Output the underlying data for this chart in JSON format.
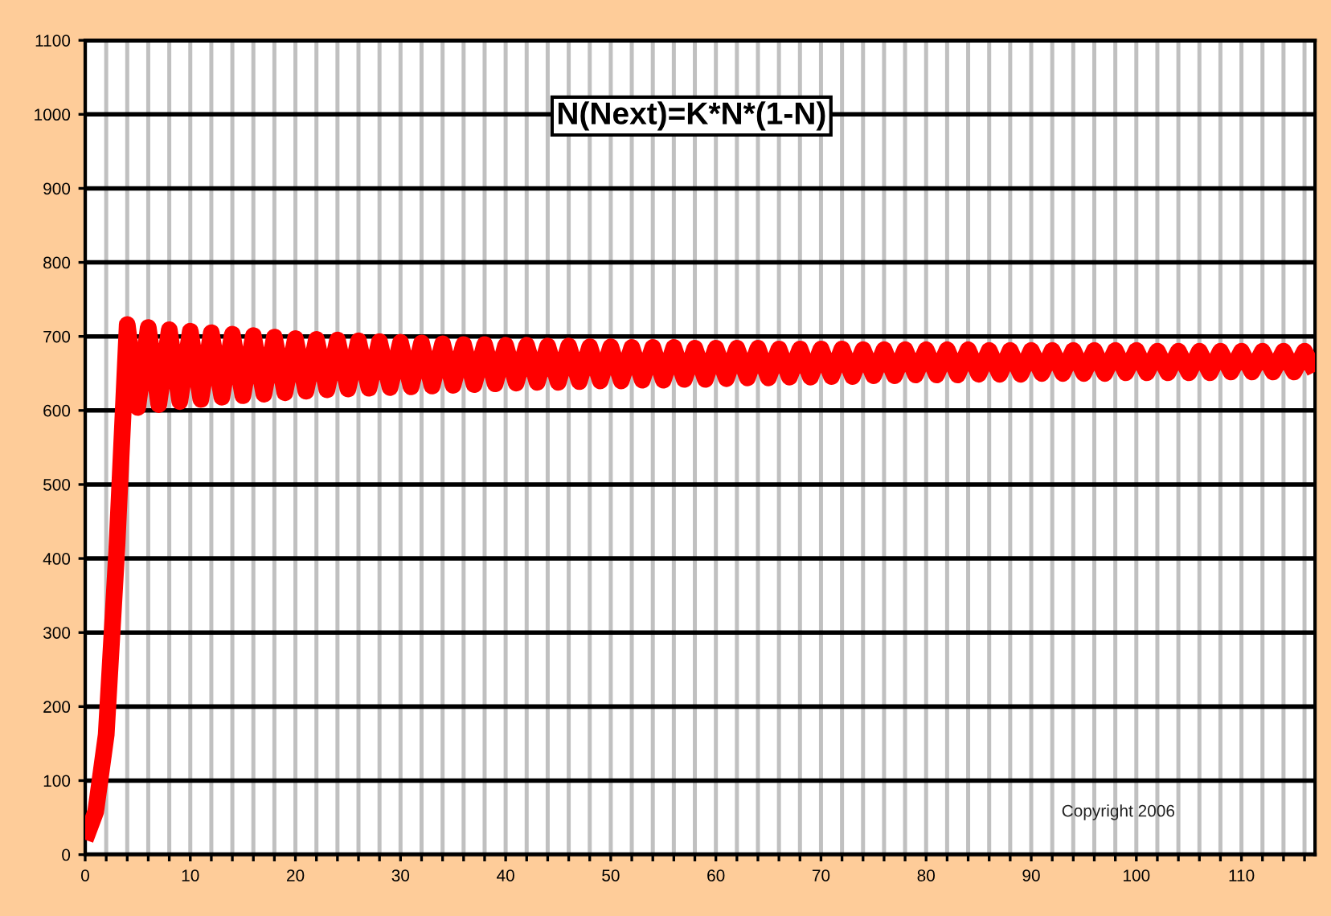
{
  "chart_data": {
    "type": "line",
    "title": "N(Next)=K*N*(1-N)",
    "annotations": [
      "Copyright 2006"
    ],
    "x": [
      0,
      1,
      2,
      3,
      4,
      5,
      6,
      7,
      8,
      9,
      10,
      11,
      12,
      13,
      14,
      15,
      16,
      17,
      18,
      19,
      20,
      21,
      22,
      23,
      24,
      25,
      26,
      27,
      28,
      29,
      30,
      31,
      32,
      33,
      34,
      35,
      36,
      37,
      38,
      39,
      40,
      41,
      42,
      43,
      44,
      45,
      46,
      47,
      48,
      49,
      50,
      51,
      52,
      53,
      54,
      55,
      56,
      57,
      58,
      59,
      60,
      61,
      62,
      63,
      64,
      65,
      66,
      67,
      68,
      69,
      70,
      71,
      72,
      73,
      74,
      75,
      76,
      77,
      78,
      79,
      80,
      81,
      82,
      83,
      84,
      85,
      86,
      87,
      88,
      89,
      90,
      91,
      92,
      93,
      94,
      95,
      96,
      97,
      98,
      99,
      100,
      101,
      102,
      103,
      104,
      105,
      106,
      107,
      108,
      109,
      110,
      111,
      112,
      113,
      114,
      115,
      116,
      117
    ],
    "series": [
      {
        "color": "#ff0000",
        "values": [
          20,
          58,
          162,
          410,
          716,
          604,
          712,
          608,
          709,
          612,
          707,
          615,
          705,
          618,
          703,
          620,
          701,
          622,
          699,
          624,
          697,
          626,
          696,
          628,
          695,
          629,
          694,
          630,
          693,
          631,
          692,
          632,
          691,
          633,
          690,
          634,
          689,
          635,
          689,
          636,
          688,
          637,
          688,
          638,
          687,
          638,
          687,
          639,
          686,
          640,
          686,
          640,
          685,
          641,
          685,
          641,
          685,
          642,
          684,
          642,
          684,
          643,
          684,
          644,
          684,
          644,
          683,
          645,
          683,
          645,
          683,
          646,
          683,
          646,
          682,
          647,
          682,
          647,
          682,
          648,
          682,
          648,
          682,
          648,
          682,
          649,
          681,
          649,
          681,
          649,
          681,
          650,
          681,
          650,
          681,
          650,
          681,
          650,
          681,
          651,
          681,
          651,
          680,
          651,
          680,
          651,
          680,
          651,
          680,
          652,
          680,
          652,
          680,
          652,
          680,
          652,
          680,
          652
        ]
      }
    ],
    "xlim": [
      0,
      117
    ],
    "xticks": [
      0,
      {
        "value": 2,
        "label": null
      },
      {
        "value": 4,
        "label": null
      },
      {
        "value": 6,
        "label": null
      },
      {
        "value": 8,
        "label": null
      },
      10,
      {
        "value": 12,
        "label": null
      },
      {
        "value": 14,
        "label": null
      },
      {
        "value": 16,
        "label": null
      },
      {
        "value": 18,
        "label": null
      },
      20,
      {
        "value": 22,
        "label": null
      },
      {
        "value": 24,
        "label": null
      },
      {
        "value": 26,
        "label": null
      },
      {
        "value": 28,
        "label": null
      },
      30,
      {
        "value": 32,
        "label": null
      },
      {
        "value": 34,
        "label": null
      },
      {
        "value": 36,
        "label": null
      },
      {
        "value": 38,
        "label": null
      },
      40,
      {
        "value": 42,
        "label": null
      },
      {
        "value": 44,
        "label": null
      },
      {
        "value": 46,
        "label": null
      },
      {
        "value": 48,
        "label": null
      },
      50,
      {
        "value": 52,
        "label": null
      },
      {
        "value": 54,
        "label": null
      },
      {
        "value": 56,
        "label": null
      },
      {
        "value": 58,
        "label": null
      },
      60,
      {
        "value": 62,
        "label": null
      },
      {
        "value": 64,
        "label": null
      },
      {
        "value": 66,
        "label": null
      },
      {
        "value": 68,
        "label": null
      },
      70,
      {
        "value": 72,
        "label": null
      },
      {
        "value": 74,
        "label": null
      },
      {
        "value": 76,
        "label": null
      },
      {
        "value": 78,
        "label": null
      },
      80,
      {
        "value": 82,
        "label": null
      },
      {
        "value": 84,
        "label": null
      },
      {
        "value": 86,
        "label": null
      },
      {
        "value": 88,
        "label": null
      },
      90,
      {
        "value": 92,
        "label": null
      },
      {
        "value": 94,
        "label": null
      },
      {
        "value": 96,
        "label": null
      },
      {
        "value": 98,
        "label": null
      },
      100,
      {
        "value": 102,
        "label": null
      },
      {
        "value": 104,
        "label": null
      },
      {
        "value": 106,
        "label": null
      },
      {
        "value": 108,
        "label": null
      },
      110,
      {
        "value": 112,
        "label": null
      },
      {
        "value": 114,
        "label": null
      },
      {
        "value": 116,
        "label": null
      }
    ],
    "ylim": [
      0,
      1100
    ],
    "yticks": [
      0,
      100,
      200,
      300,
      400,
      500,
      600,
      700,
      800,
      900,
      1000,
      1100
    ],
    "grid": true,
    "marker": "none",
    "line_style": "solid",
    "legend": false
  }
}
